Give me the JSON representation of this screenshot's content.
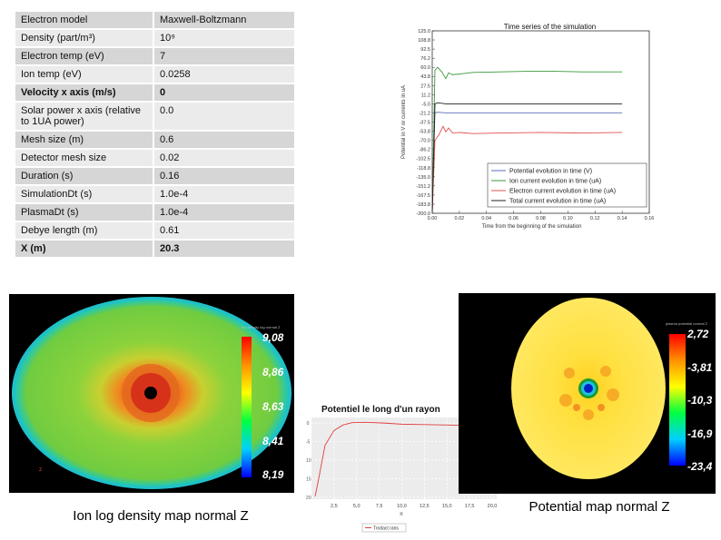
{
  "params": [
    {
      "key": "Electron model",
      "value": "Maxwell-Boltzmann",
      "bold": false
    },
    {
      "key": "Density (part/m³)",
      "value": "10⁹",
      "bold": false
    },
    {
      "key": "Electron temp (eV)",
      "value": "7",
      "bold": false
    },
    {
      "key": "Ion temp (eV)",
      "value": "0.0258",
      "bold": false
    },
    {
      "key": "Velocity x axis (m/s)",
      "value": "0",
      "bold": true
    },
    {
      "key": "Solar power x axis (relative to 1UA power)",
      "value": "0.0",
      "bold": false
    },
    {
      "key": "Mesh size (m)",
      "value": "0.6",
      "bold": false
    },
    {
      "key": "Detector mesh size",
      "value": "0.02",
      "bold": false
    },
    {
      "key": "Duration (s)",
      "value": "0.16",
      "bold": false
    },
    {
      "key": "SimulationDt (s)",
      "value": "1.0e-4",
      "bold": false
    },
    {
      "key": "PlasmaDt (s)",
      "value": "1.0e-4",
      "bold": false
    },
    {
      "key": "Debye length (m)",
      "value": "0.61",
      "bold": false
    },
    {
      "key": "X (m)",
      "value": "20.3",
      "bold": true
    }
  ],
  "chart_data": [
    {
      "type": "line",
      "title": "Time series of the simulation",
      "xlabel": "Time from the beginning of the simulation",
      "ylabel": "Potential in V or currents in uA",
      "xlim": [
        0.0,
        0.16
      ],
      "ylim": [
        -200.0,
        125.0
      ],
      "x_ticks": [
        "0.00",
        "0.02",
        "0.04",
        "0.06",
        "0.08",
        "0.10",
        "0.12",
        "0.14",
        "0.16"
      ],
      "y_ticks": [
        "125.0",
        "108.8",
        "92.5",
        "76.2",
        "60.0",
        "43.8",
        "27.5",
        "11.2",
        "-5.0",
        "-21.2",
        "-37.5",
        "-53.8",
        "-70.0",
        "-86.2",
        "-102.5",
        "-118.8",
        "-135.0",
        "-151.2",
        "-167.5",
        "-183.8",
        "-200.0"
      ],
      "legend": "lower-right",
      "series": [
        {
          "name": "Potential evolution in time (V)",
          "color": "#5a6fb5",
          "x": [
            0.0,
            0.001,
            0.002,
            0.004,
            0.01,
            0.03,
            0.06,
            0.1,
            0.14
          ],
          "y": [
            -200,
            -100,
            -21,
            -20,
            -21,
            -21,
            -21,
            -21,
            -21
          ]
        },
        {
          "name": "Ion current evolution in time (uA)",
          "color": "#3a9a3a",
          "x": [
            0.0,
            0.002,
            0.004,
            0.007,
            0.01,
            0.012,
            0.015,
            0.02,
            0.03,
            0.05,
            0.07,
            0.09,
            0.11,
            0.13,
            0.14
          ],
          "y": [
            -200,
            55,
            60,
            52,
            40,
            50,
            47,
            48,
            51,
            52,
            53,
            53,
            52,
            52,
            52
          ]
        },
        {
          "name": "Electron current evolution in time (uA)",
          "color": "#e05050",
          "x": [
            0.0,
            0.002,
            0.005,
            0.008,
            0.01,
            0.012,
            0.015,
            0.02,
            0.03,
            0.05,
            0.08,
            0.11,
            0.14
          ],
          "y": [
            -200,
            -70,
            -60,
            -45,
            -55,
            -48,
            -57,
            -56,
            -58,
            -57,
            -56,
            -57,
            -56
          ]
        },
        {
          "name": "Total current evolution in time (uA)",
          "color": "#222222",
          "x": [
            0.0,
            0.002,
            0.004,
            0.01,
            0.03,
            0.06,
            0.1,
            0.14
          ],
          "y": [
            -200,
            -5,
            -3,
            -5,
            -5,
            -5,
            -5,
            -5
          ]
        }
      ]
    },
    {
      "type": "line",
      "title": "Potentiel le long d'un rayon",
      "xlabel": "X",
      "ylabel": "",
      "xlim": [
        0.0,
        20.5
      ],
      "ylim": [
        -20.5,
        1.5
      ],
      "x_ticks": [
        "2,5",
        "5,0",
        "7,5",
        "10,0",
        "12,5",
        "15,0",
        "17,5",
        "20,0"
      ],
      "y_ticks": [
        "0",
        "-5",
        "-10",
        "-15",
        "-20"
      ],
      "legend_label": "Trodact rans",
      "series": [
        {
          "name": "Trodact rans",
          "color": "#e04040",
          "x": [
            0.4,
            0.8,
            1.5,
            2.5,
            3.5,
            4.5,
            6.0,
            8.0,
            10.0,
            12.5,
            14.5,
            16.5,
            18.0,
            19.0,
            19.5,
            20.0,
            20.3
          ],
          "y": [
            -19.8,
            -15,
            -6,
            -2.0,
            -0.5,
            0.1,
            0.2,
            0.0,
            -0.3,
            -0.4,
            -0.5,
            -0.6,
            -0.6,
            -0.3,
            0.3,
            0.9,
            0.9
          ]
        }
      ]
    }
  ],
  "ion_map": {
    "caption": "Ion log density map normal Z",
    "colorbar_title": "ion density log normal Z",
    "colorbar_ticks": [
      "9,08",
      "8,86",
      "8,63",
      "8,41",
      "8,19"
    ]
  },
  "potential_map": {
    "caption": "Potential map normal Z",
    "colorbar_title": "plasma potential normal Z",
    "colorbar_ticks": [
      "2,72",
      "-3,81",
      "-10,3",
      "-16,9",
      "-23,4"
    ]
  }
}
